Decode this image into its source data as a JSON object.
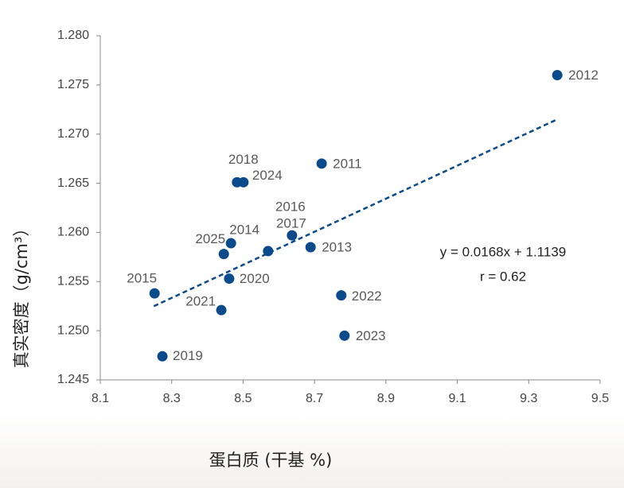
{
  "chart_data": {
    "type": "scatter",
    "x_label": "蛋白质 (干基 %)",
    "y_label": "真实密度（g/cm³）",
    "series": [
      {
        "color": "#0b4a8b",
        "point_labels": [
          "2012",
          "2011",
          "2018",
          "2024",
          "2016",
          "2017",
          "2014",
          "2025",
          "2013",
          "2015",
          "2020",
          "2021",
          "2022",
          "2023",
          "2019"
        ],
        "x": [
          9.38,
          8.72,
          8.483,
          8.501,
          8.57,
          8.637,
          8.466,
          8.446,
          8.689,
          8.252,
          8.461,
          8.439,
          8.775,
          8.784,
          8.274
        ],
        "values": [
          1.276,
          1.267,
          1.2651,
          1.2651,
          1.2581,
          1.2597,
          1.2589,
          1.2578,
          1.2585,
          1.2538,
          1.2553,
          1.2521,
          1.2536,
          1.2495,
          1.2474
        ]
      }
    ],
    "trendline": {
      "color": "#0b4a8b",
      "x": [
        8.25,
        9.38
      ],
      "values": [
        1.2525,
        1.2715
      ]
    },
    "annotations": [
      "y = 0.0168x + 1.1139",
      "r = 0.62"
    ],
    "xlim": [
      8.1,
      9.5
    ],
    "xticks": [
      8.1,
      8.3,
      8.5,
      8.7,
      8.9,
      9.1,
      9.3,
      9.5
    ],
    "ylim": [
      1.245,
      1.28
    ],
    "yticks": [
      {
        "value": 1.245,
        "label": "1.245"
      },
      {
        "value": 1.25,
        "label": "1.250"
      },
      {
        "value": 1.255,
        "label": "1.255"
      },
      {
        "value": 1.26,
        "label": "1.260"
      },
      {
        "value": 1.265,
        "label": "1.265"
      },
      {
        "value": 1.27,
        "label": "1.270"
      },
      {
        "value": 1.275,
        "label": "1.275"
      },
      {
        "value": 1.28,
        "label": "1.280"
      }
    ]
  }
}
